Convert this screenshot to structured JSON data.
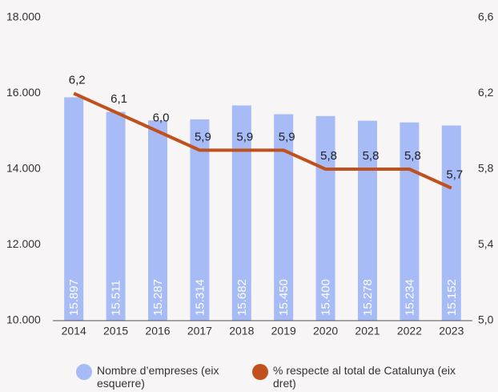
{
  "chart_data": {
    "type": "bar-line",
    "categories": [
      "2014",
      "2015",
      "2016",
      "2017",
      "2018",
      "2019",
      "2020",
      "2021",
      "2022",
      "2023"
    ],
    "series": [
      {
        "name": "Nombre d’empreses (eix esquerre)",
        "type": "bar",
        "color": "#a7bbf6",
        "values": [
          15897,
          15511,
          15287,
          15314,
          15682,
          15450,
          15400,
          15278,
          15234,
          15152
        ],
        "value_labels": [
          "15.897",
          "15.511",
          "15.287",
          "15.314",
          "15.682",
          "15.450",
          "15.400",
          "15.278",
          "15.234",
          "15.152"
        ]
      },
      {
        "name": "% respecte al total de Catalunya (eix dret)",
        "type": "line",
        "axis": "y2",
        "color": "#c0501c",
        "values": [
          6.2,
          6.1,
          6.0,
          5.9,
          5.9,
          5.9,
          5.8,
          5.8,
          5.8,
          5.7
        ],
        "value_labels": [
          "6,2",
          "6,1",
          "6,0",
          "5,9",
          "5,9",
          "5,9",
          "5,8",
          "5,8",
          "5,8",
          "5,7"
        ]
      }
    ],
    "ylim": [
      10000,
      18000
    ],
    "yticks": [
      {
        "value": 10000,
        "label": "10.000"
      },
      {
        "value": 12000,
        "label": "12.000"
      },
      {
        "value": 14000,
        "label": "14.000"
      },
      {
        "value": 16000,
        "label": "16.000"
      },
      {
        "value": 18000,
        "label": "18.000"
      }
    ],
    "y2lim": [
      5.0,
      6.6
    ],
    "y2ticks": [
      {
        "value": 5.0,
        "label": "5,0"
      },
      {
        "value": 5.4,
        "label": "5,4"
      },
      {
        "value": 5.8,
        "label": "5,8"
      },
      {
        "value": 6.2,
        "label": "6,2"
      },
      {
        "value": 6.6,
        "label": "6,6"
      }
    ],
    "grid": false,
    "legend": "bottom"
  }
}
